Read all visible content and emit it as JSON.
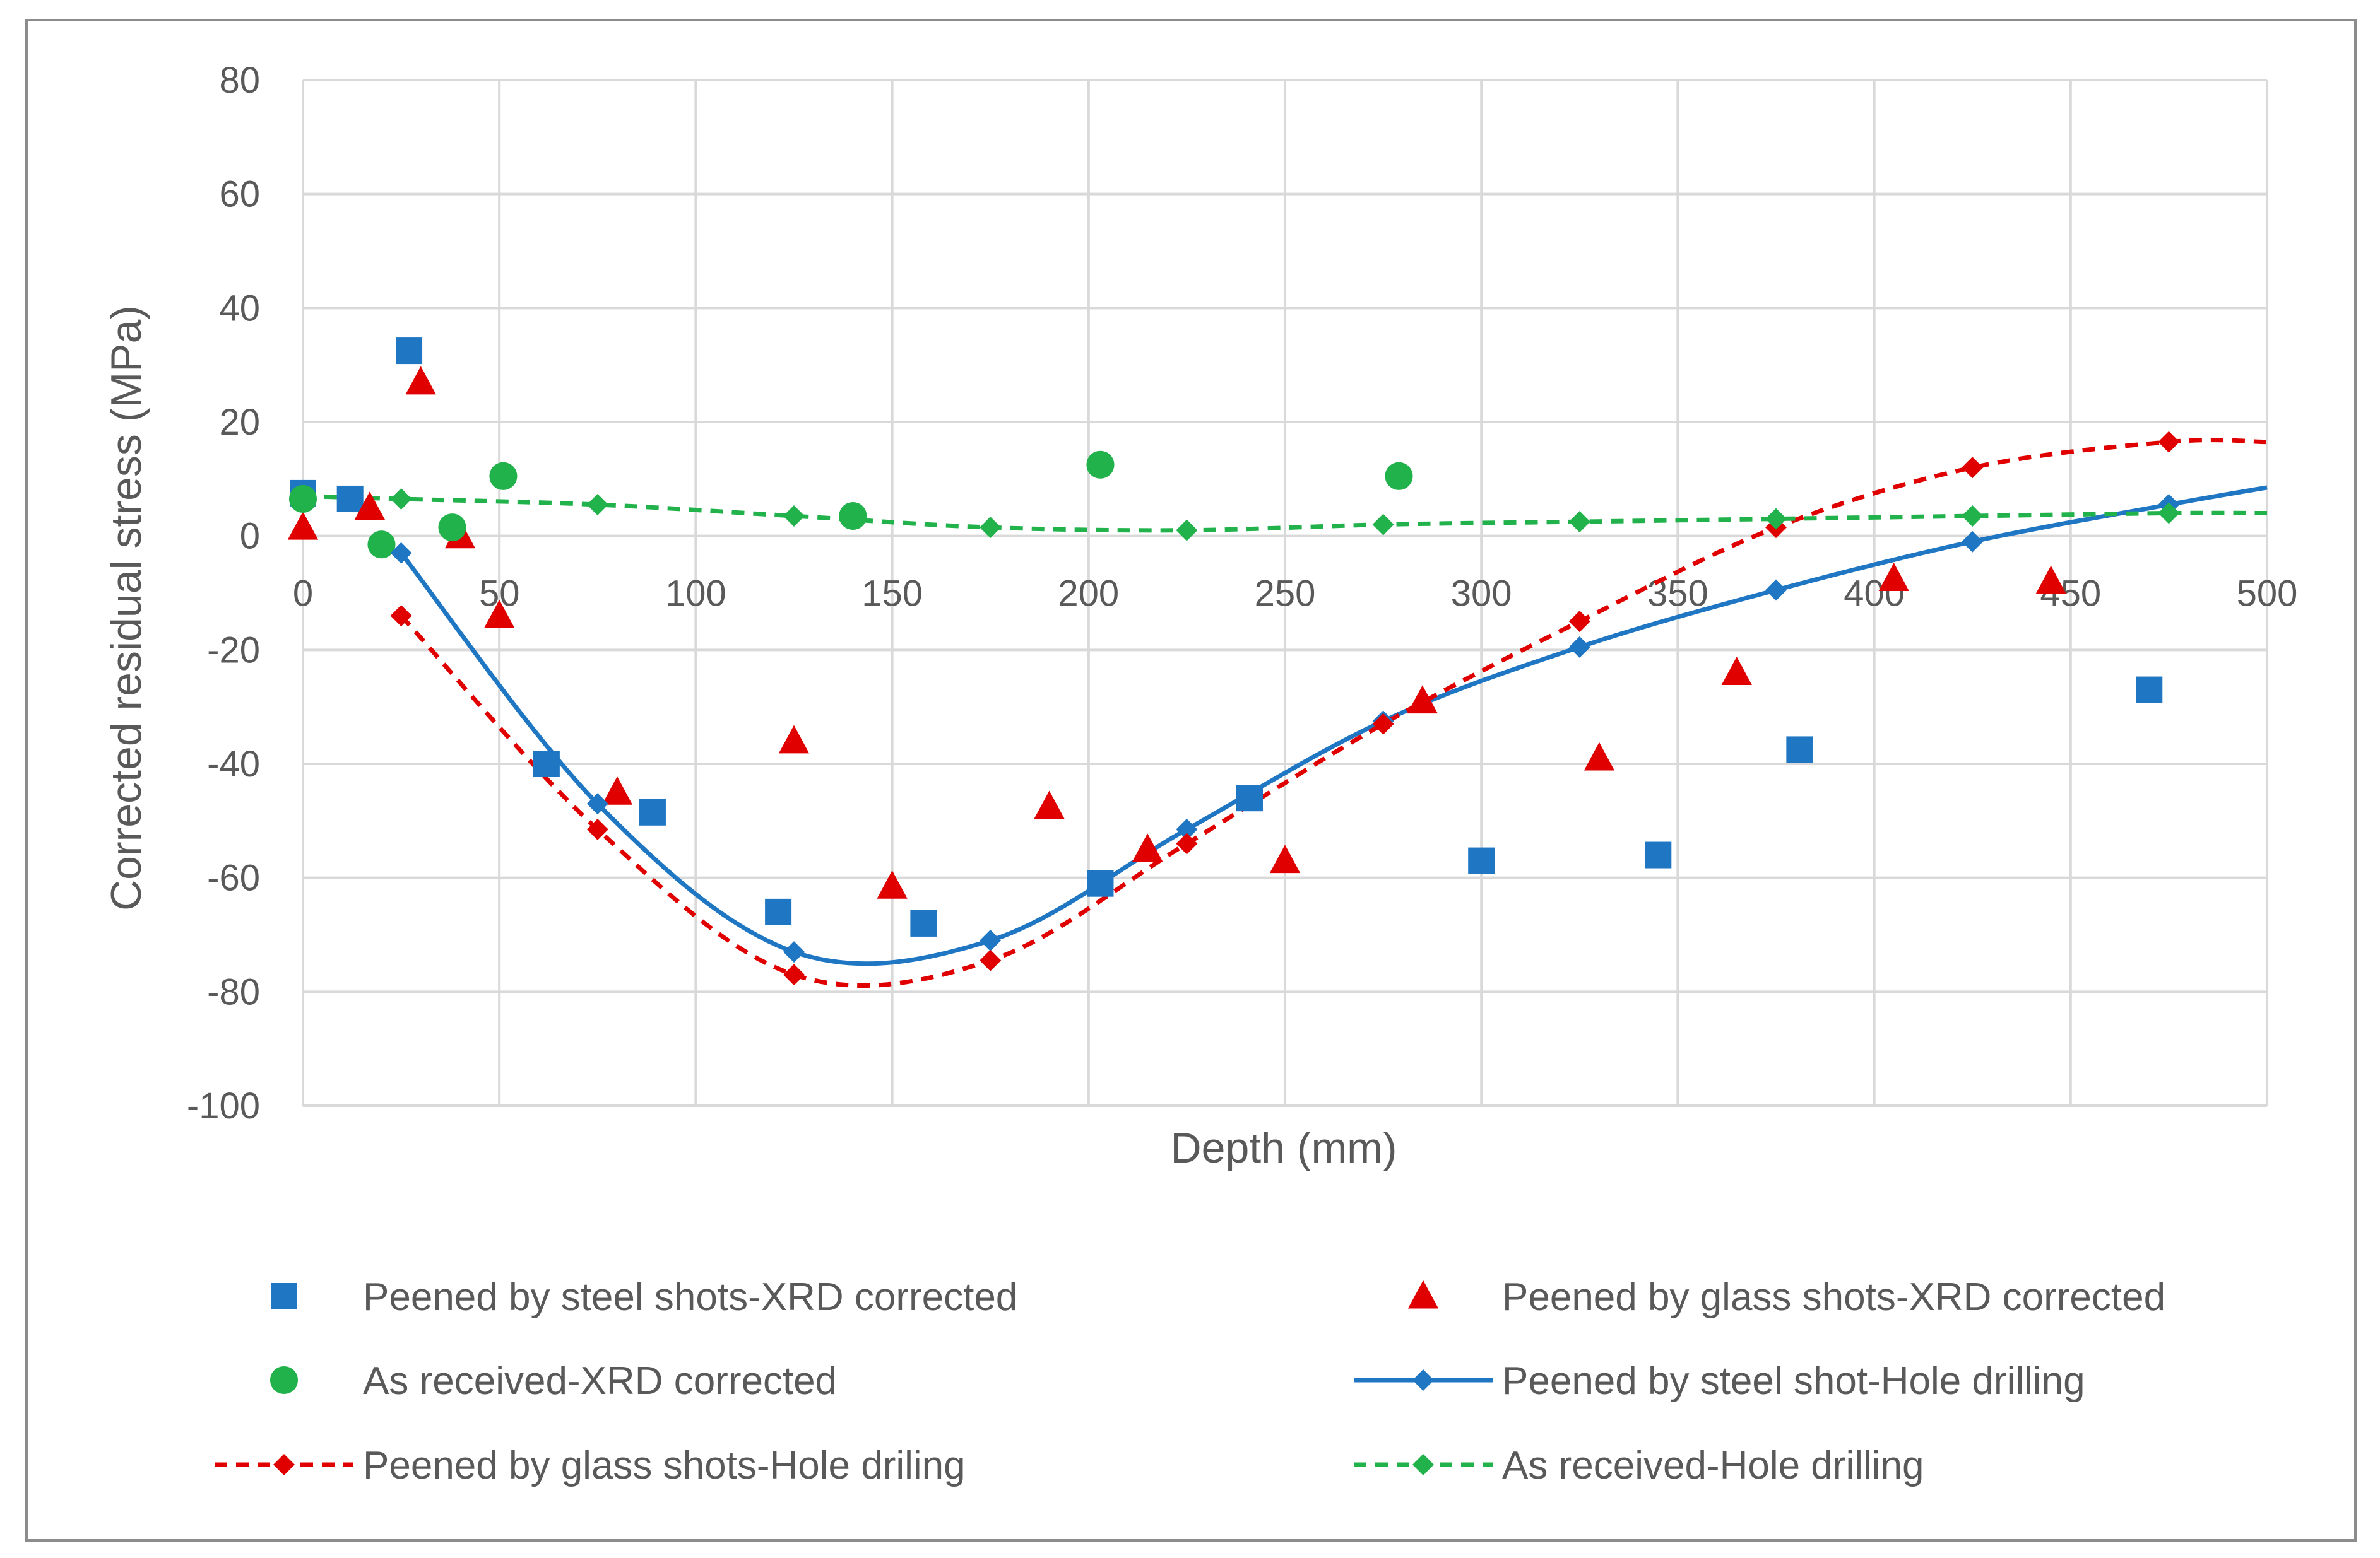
{
  "chart_data": {
    "type": "scatter",
    "title": "",
    "xlabel": "Depth (mm)",
    "ylabel": "Corrected residual stress (MPa)",
    "xlim": [
      0,
      500
    ],
    "ylim": [
      -100,
      80
    ],
    "x_ticks": [
      0,
      50,
      100,
      150,
      200,
      250,
      300,
      350,
      400,
      450,
      500
    ],
    "y_ticks": [
      -100,
      -80,
      -60,
      -40,
      -20,
      0,
      20,
      40,
      60,
      80
    ],
    "x_tick_labels": [
      "0",
      "50",
      "100",
      "150",
      "200",
      "250",
      "300",
      "350",
      "400",
      "450",
      "500"
    ],
    "y_tick_labels": [
      "-100",
      "-80",
      "-60",
      "-40",
      "-20",
      "0",
      "20",
      "40",
      "60",
      "80"
    ],
    "grid": true,
    "legend_position": "bottom",
    "series": [
      {
        "name": "Peened by steel shots-XRD corrected",
        "color": "#1F77C4",
        "marker": "square",
        "line": "none",
        "x": [
          0,
          12,
          27,
          62,
          89,
          121,
          158,
          203,
          241,
          300,
          345,
          381,
          470
        ],
        "y": [
          7.5,
          6.5,
          32.5,
          -40,
          -48.5,
          -66,
          -68,
          -61,
          -46,
          -57,
          -56,
          -37.5,
          -27
        ]
      },
      {
        "name": "Peened by glass shots-XRD corrected",
        "color": "#E00000",
        "marker": "triangle",
        "line": "none",
        "x": [
          0,
          17,
          30,
          40,
          50,
          80,
          125,
          150,
          190,
          215,
          250,
          285,
          330,
          365,
          405,
          445
        ],
        "y": [
          1.5,
          5,
          27,
          0,
          -14,
          -45,
          -36,
          -61.5,
          -47.5,
          -55,
          -57,
          -29,
          -39,
          -24,
          -7.5,
          -8
        ]
      },
      {
        "name": "As received-XRD corrected",
        "color": "#21B24B",
        "marker": "circle",
        "line": "none",
        "x": [
          0,
          20,
          38,
          51,
          140,
          203,
          279
        ],
        "y": [
          6.5,
          -1.5,
          1.5,
          10.5,
          3.5,
          12.5,
          10.5
        ]
      },
      {
        "name": "Peened by steel shot-Hole drilling",
        "color": "#1F77C4",
        "marker": "diamond",
        "line": "solid",
        "x": [
          25,
          75,
          125,
          175,
          225,
          275,
          325,
          375,
          425,
          475,
          500
        ],
        "y": [
          -3,
          -47,
          -73,
          -71,
          -51.5,
          -32.5,
          -19.5,
          -9.5,
          -1,
          5.5,
          8.5
        ]
      },
      {
        "name": "Peened by glass shots-Hole driling",
        "color": "#E00000",
        "marker": "diamond",
        "line": "dashed",
        "x": [
          25,
          75,
          125,
          175,
          225,
          275,
          325,
          375,
          425,
          475,
          500
        ],
        "y": [
          -14,
          -51.5,
          -77,
          -74.5,
          -54,
          -33,
          -15,
          1.5,
          12,
          16.5,
          16.5
        ]
      },
      {
        "name": "As received-Hole drilling",
        "color": "#21B24B",
        "marker": "diamond",
        "line": "dashed",
        "x": [
          0,
          25,
          75,
          125,
          175,
          225,
          275,
          325,
          375,
          425,
          475,
          500
        ],
        "y": [
          7,
          6.5,
          5.5,
          3.5,
          1.5,
          1,
          2,
          2.5,
          3,
          3.5,
          4,
          4
        ]
      }
    ]
  }
}
